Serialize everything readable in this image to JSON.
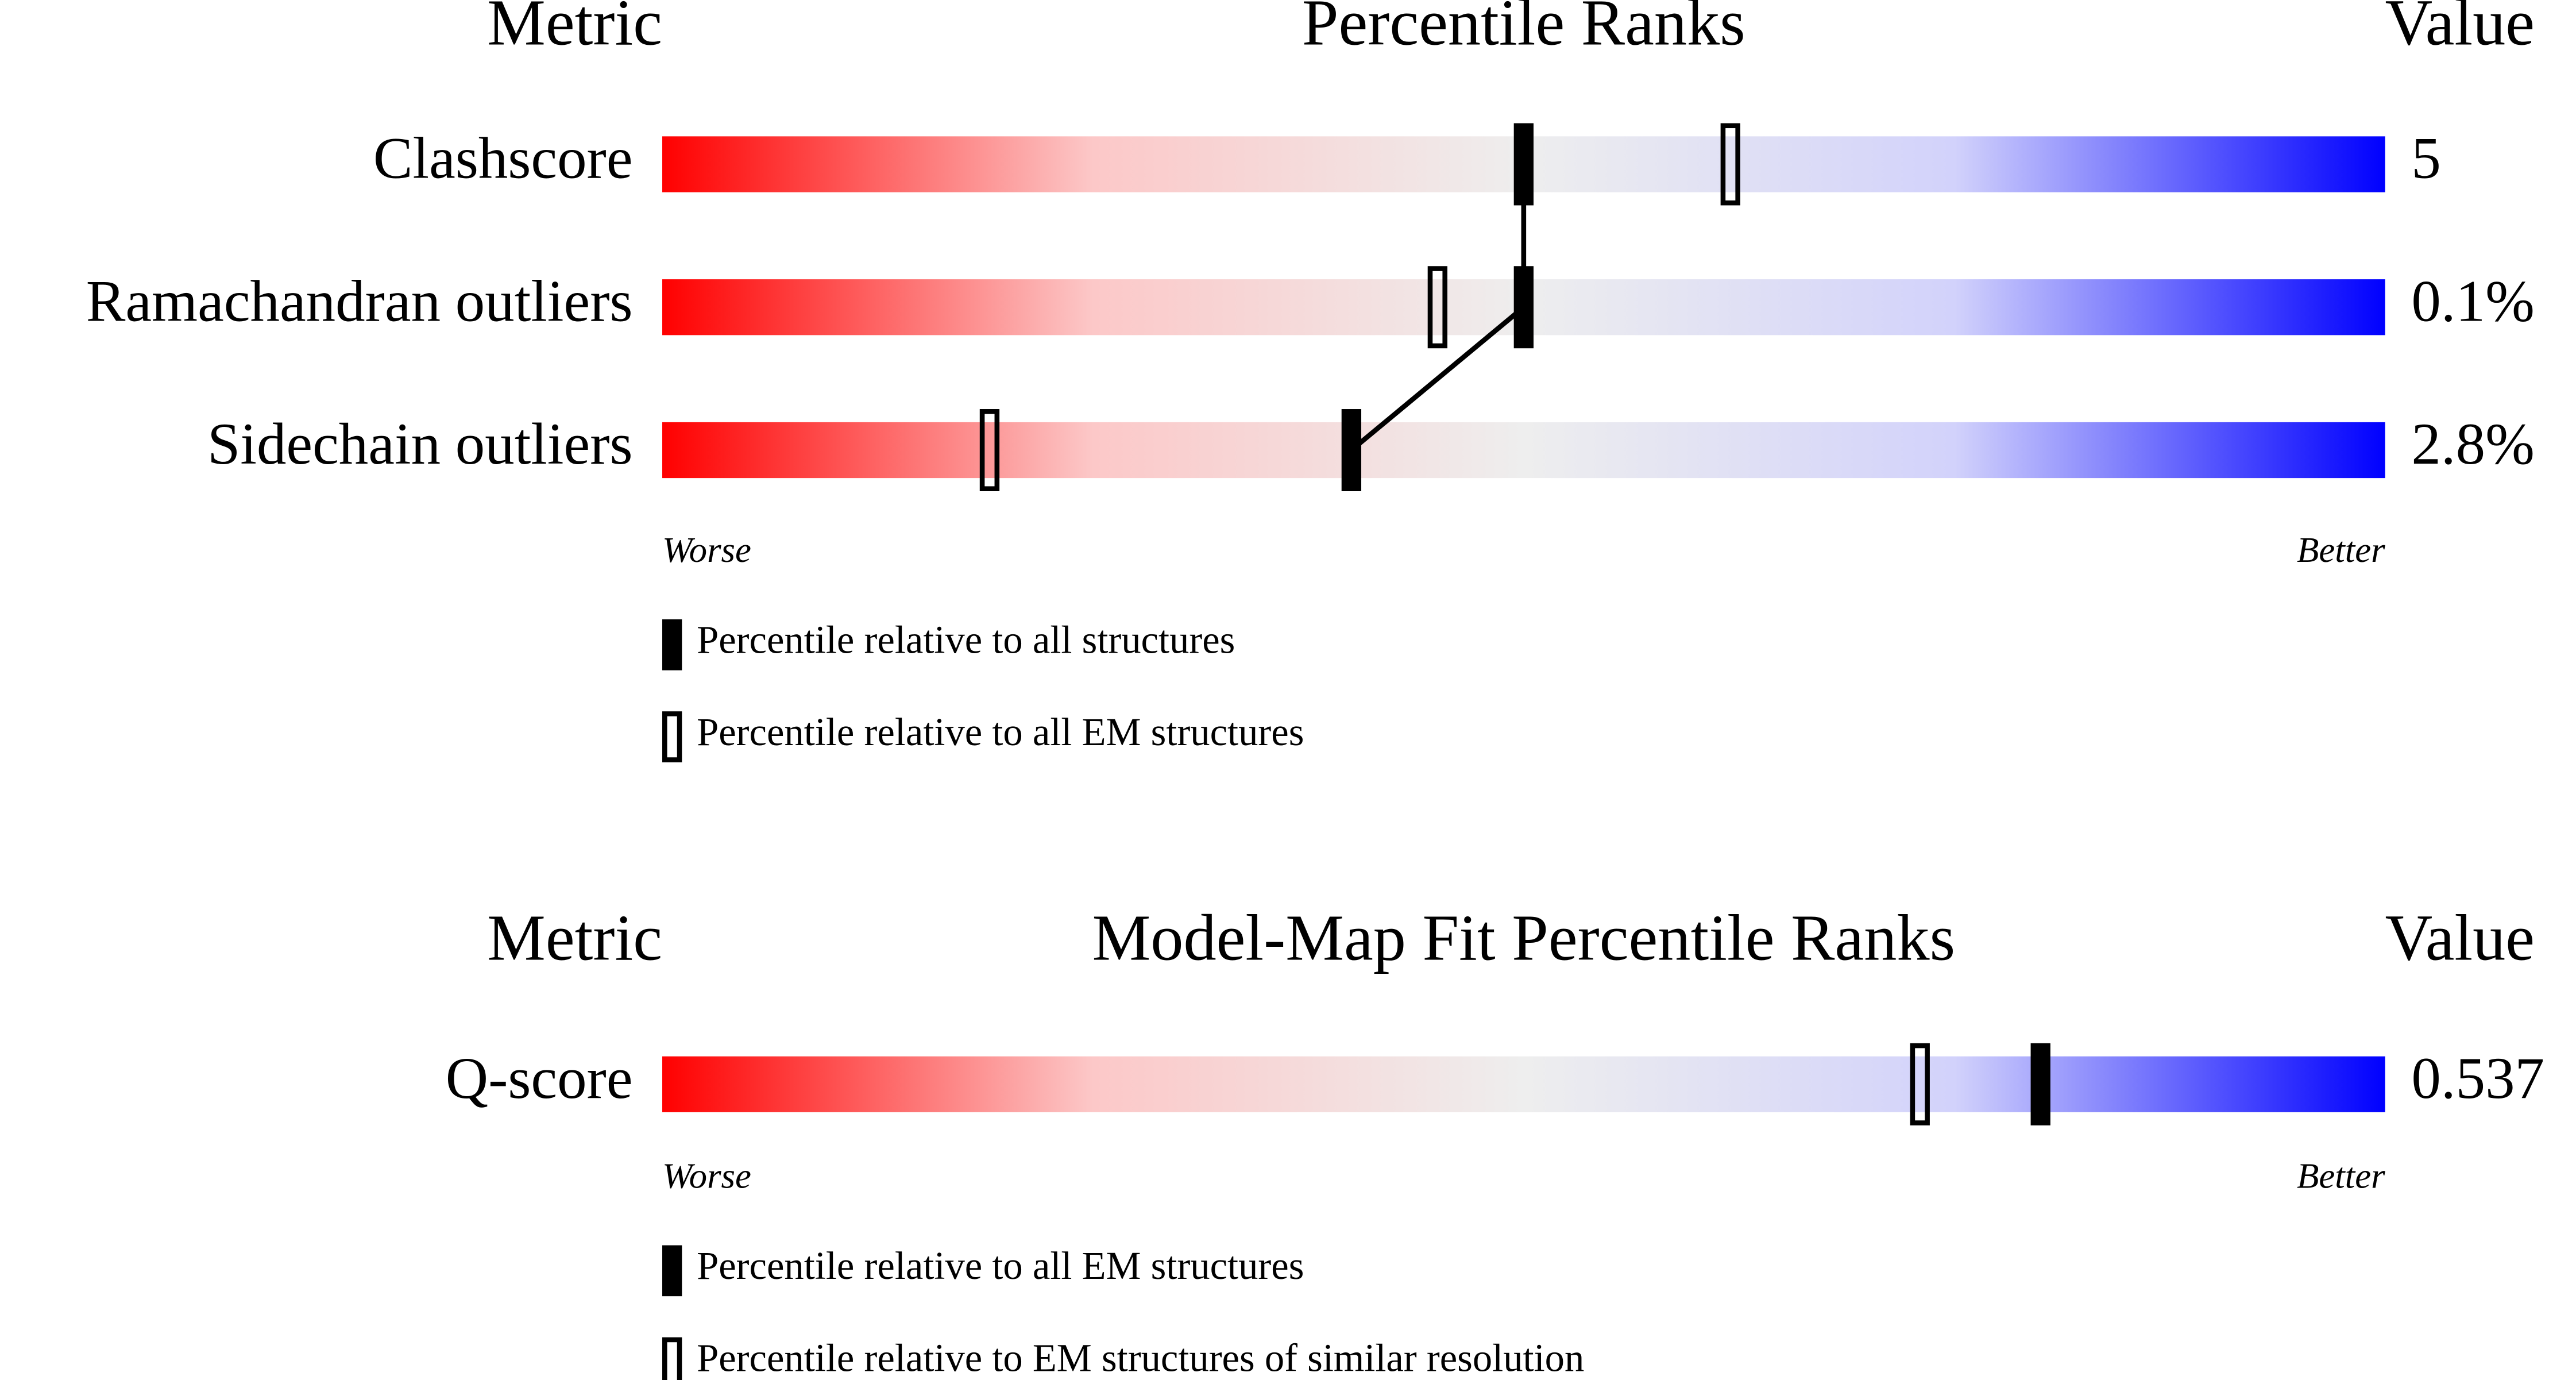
{
  "chart_data": [
    {
      "type": "slider",
      "title": "Percentile Ranks",
      "metric_header": "Metric",
      "value_header": "Value",
      "categories": [
        "Clashscore",
        "Ramachandran outliers",
        "Sidechain outliers"
      ],
      "metric_values": [
        "5",
        "0.1%",
        "2.8%"
      ],
      "series": [
        {
          "name": "Percentile relative to all structures",
          "style": "filled",
          "color": "#000000",
          "values": [
            50,
            50,
            40
          ]
        },
        {
          "name": "Percentile relative to all EM structures",
          "style": "open",
          "color": "#000000",
          "values": [
            62,
            45,
            19
          ]
        }
      ],
      "connect_series": 0,
      "xlim": [
        0,
        100
      ],
      "worse_label": "Worse",
      "better_label": "Better",
      "colors": [
        "#ff0000",
        "#fcc8c8",
        "#eeeeee",
        "#d2d2fb",
        "#0000ff"
      ]
    },
    {
      "type": "slider",
      "title": "Model-Map Fit Percentile Ranks",
      "metric_header": "Metric",
      "value_header": "Value",
      "categories": [
        "Q-score"
      ],
      "metric_values": [
        "0.537"
      ],
      "series": [
        {
          "name": "Percentile relative to all EM structures",
          "style": "filled",
          "color": "#000000",
          "values": [
            80
          ]
        },
        {
          "name": "Percentile relative to EM structures of similar resolution",
          "style": "open",
          "color": "#000000",
          "values": [
            73
          ]
        }
      ],
      "connect_series": 0,
      "xlim": [
        0,
        100
      ],
      "worse_label": "Worse",
      "better_label": "Better",
      "colors": [
        "#ff0000",
        "#fcc8c8",
        "#eeeeee",
        "#d2d2fb",
        "#0000ff"
      ]
    }
  ]
}
